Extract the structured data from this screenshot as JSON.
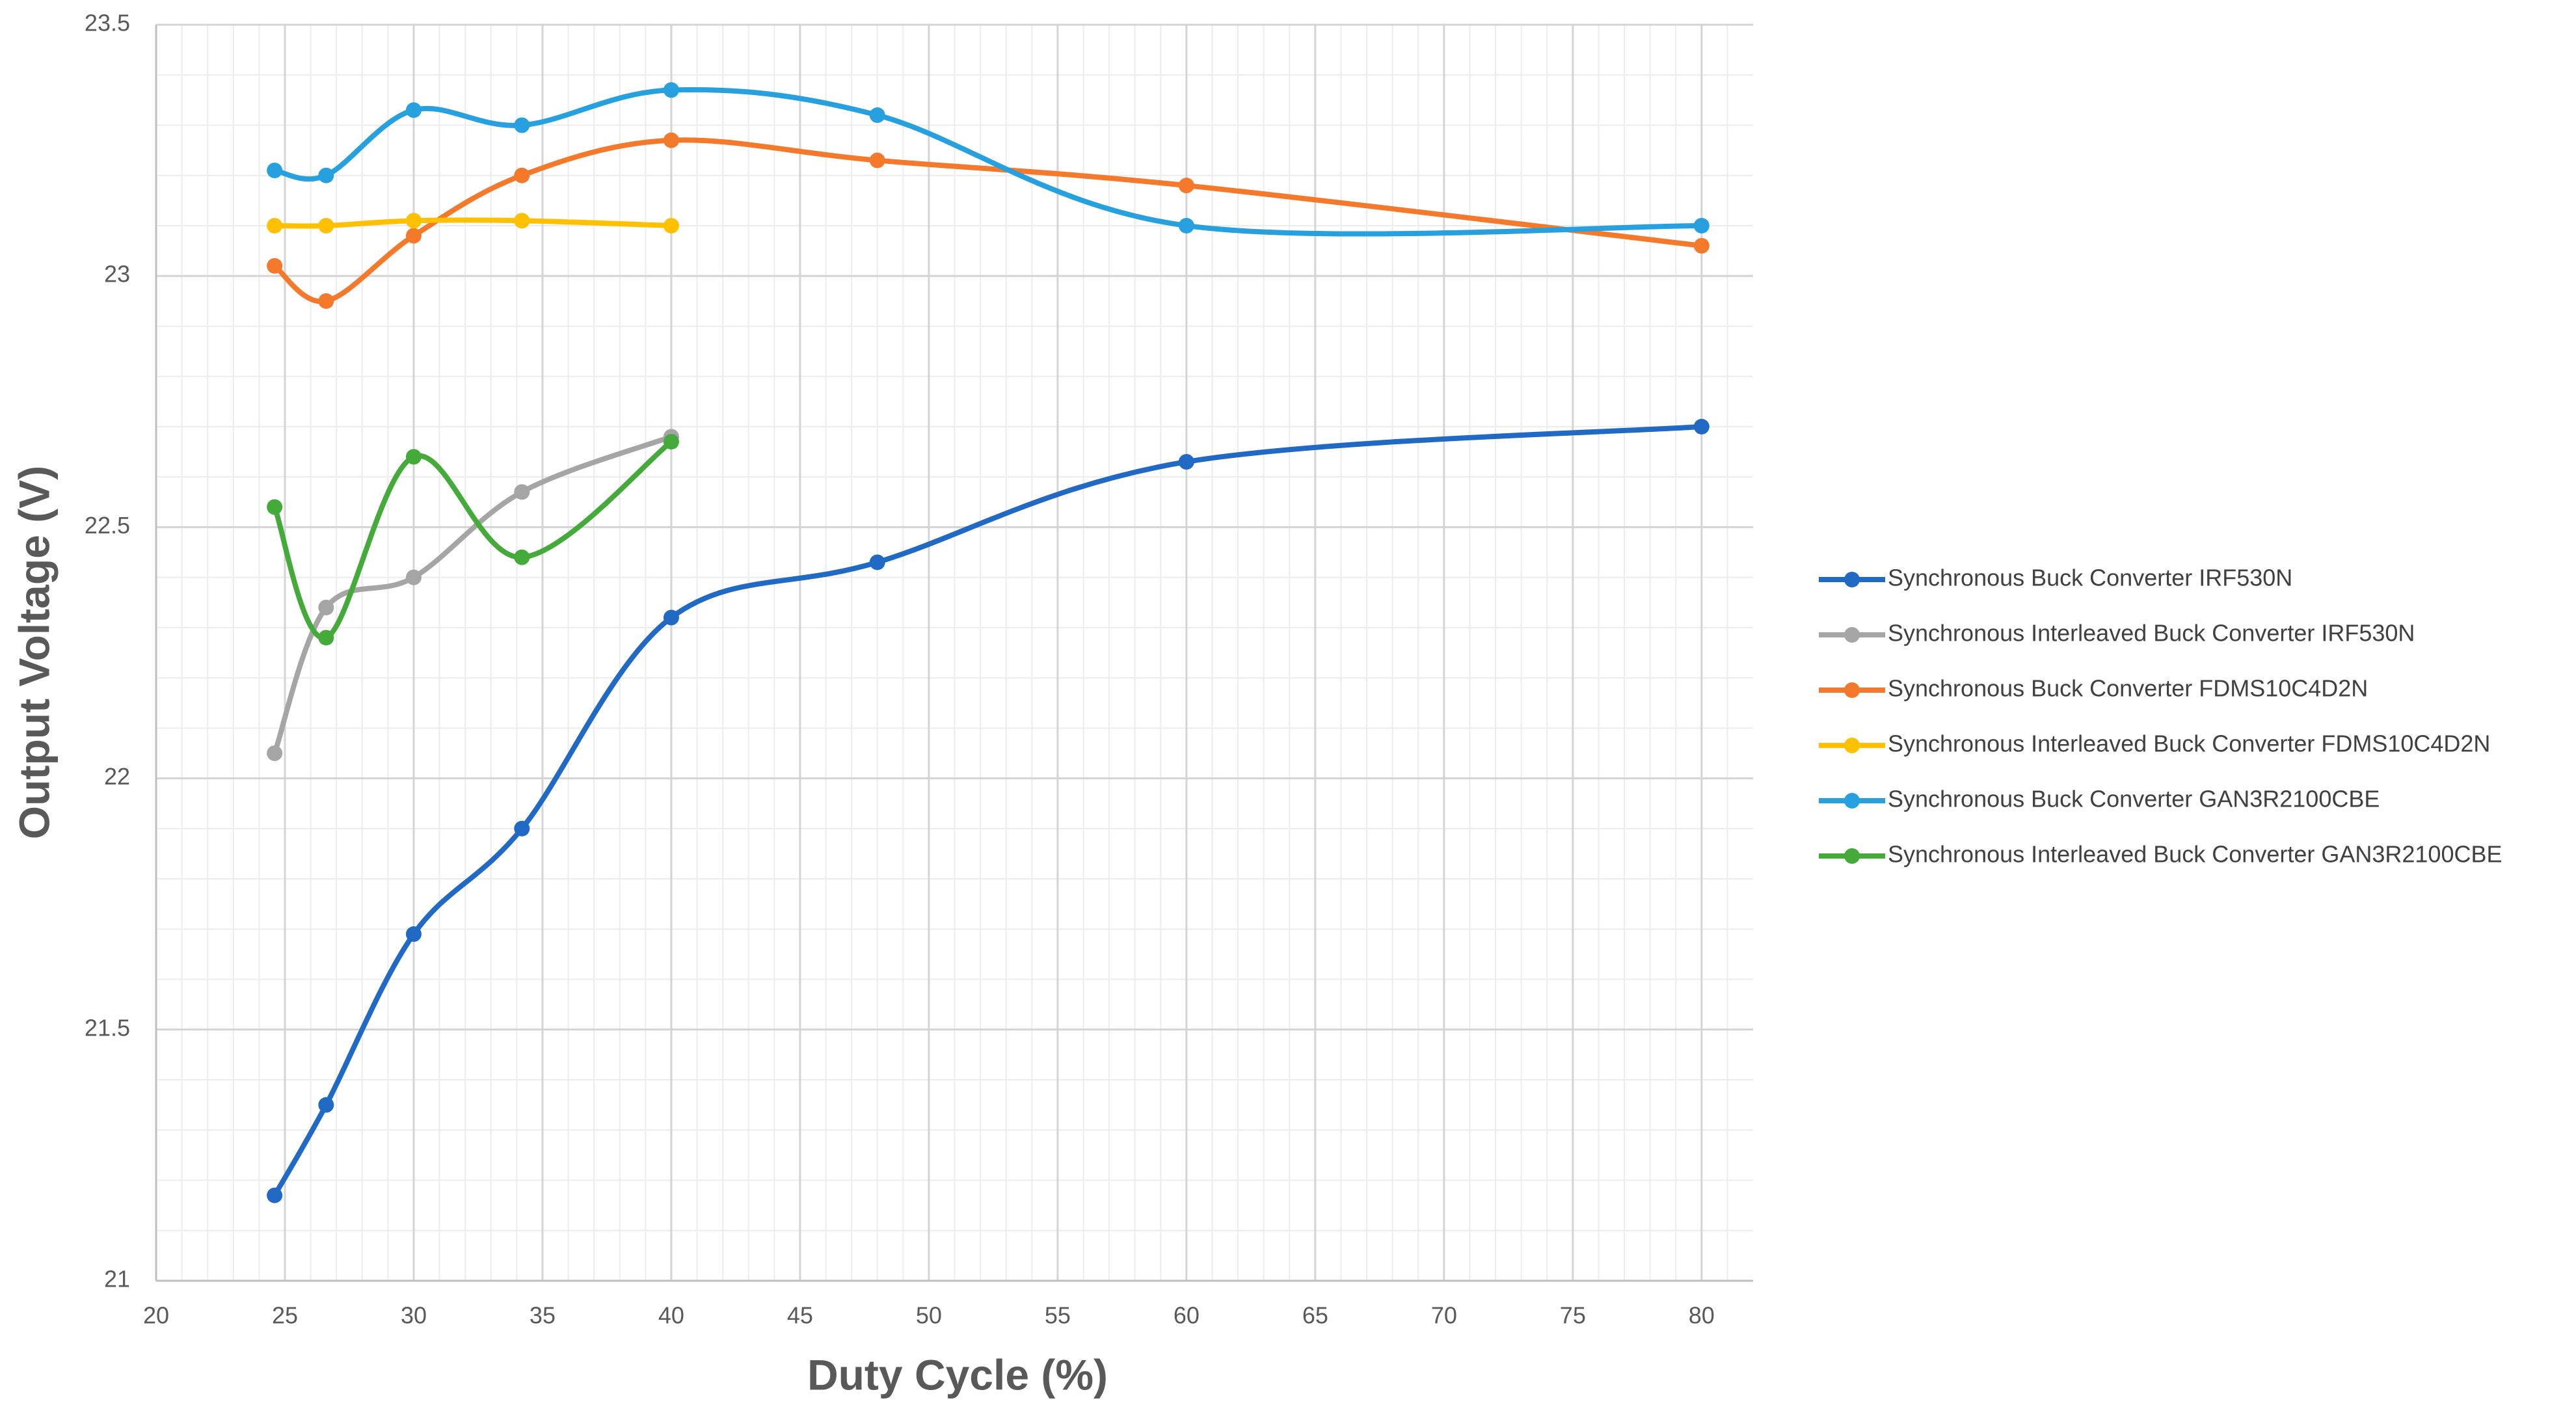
{
  "chart_data": {
    "type": "line",
    "x_label": "Duty Cycle (%)",
    "y_label": "Output Voltage (V)",
    "x": [
      24.6,
      26.6,
      30,
      34.2,
      40,
      48,
      60,
      80
    ],
    "xlim": [
      20,
      82
    ],
    "xticks": [
      20,
      25,
      30,
      35,
      40,
      45,
      50,
      55,
      60,
      65,
      70,
      75,
      80
    ],
    "ylim": [
      21,
      23.5
    ],
    "yticks": [
      21,
      21.5,
      22,
      22.5,
      23,
      23.5
    ],
    "grid": true,
    "smooth": true,
    "legend": "right",
    "series": [
      {
        "name": "Synchronous Buck Converter IRF530N",
        "color": "#2069c4",
        "values": [
          21.17,
          21.35,
          21.69,
          21.9,
          22.32,
          22.43,
          22.63,
          22.7
        ]
      },
      {
        "name": "Synchronous Interleaved Buck Converter IRF530N",
        "color": "#a5a5a5",
        "values": [
          22.05,
          22.34,
          22.4,
          22.57,
          22.68,
          null,
          null,
          null
        ]
      },
      {
        "name": "Synchronous Buck Converter FDMS10C4D2N",
        "color": "#f4792a",
        "values": [
          23.02,
          22.95,
          23.08,
          23.2,
          23.27,
          23.23,
          23.18,
          23.06
        ]
      },
      {
        "name": "Synchronous Interleaved Buck Converter FDMS10C4D2N",
        "color": "#ffc000",
        "values": [
          23.1,
          23.1,
          23.11,
          23.11,
          23.1,
          null,
          null,
          null
        ]
      },
      {
        "name": "Synchronous Buck Converter GAN3R2100CBE",
        "color": "#27a0e0",
        "values": [
          23.21,
          23.2,
          23.33,
          23.3,
          23.37,
          23.32,
          23.1,
          23.1
        ]
      },
      {
        "name": "Synchronous Interleaved Buck Converter GAN3R2100CBE",
        "color": "#44aa3a",
        "values": [
          22.54,
          22.28,
          22.64,
          22.44,
          22.67,
          null,
          null,
          null
        ]
      }
    ]
  }
}
